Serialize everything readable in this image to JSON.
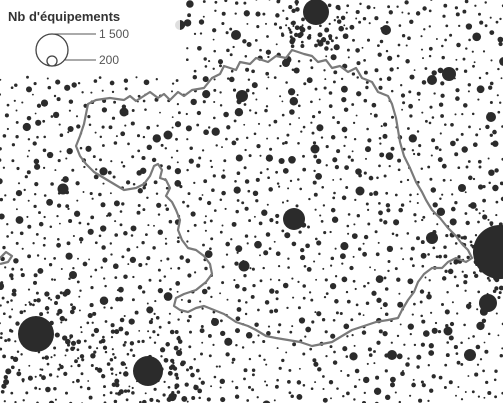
{
  "legend": {
    "title": "Nb d'équipements",
    "values": [
      {
        "label": "1 500",
        "amount": 1500
      },
      {
        "label": "200",
        "amount": 200
      }
    ]
  },
  "colors": {
    "dots": "#2b2b2b",
    "border": "#7a7a7a",
    "background": "#ffffff"
  }
}
